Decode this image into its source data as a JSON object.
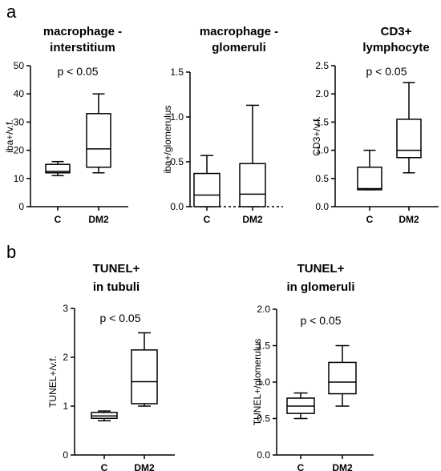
{
  "panel_labels": [
    "a",
    "b"
  ],
  "chart_data": [
    {
      "type": "box",
      "title": [
        "macrophage -",
        "interstitium"
      ],
      "ylabel": "iba+/v.f.",
      "ylim": [
        0,
        50
      ],
      "yticks": [
        "0",
        "10",
        "20",
        "30",
        "40",
        "50"
      ],
      "categories": [
        "C",
        "DM2"
      ],
      "annotation": "p < 0.05",
      "dashed_zero_line": false,
      "boxes": [
        {
          "category": "C",
          "min": 11,
          "q1": 12,
          "median": 12.5,
          "q3": 15,
          "max": 16
        },
        {
          "category": "DM2",
          "min": 12,
          "q1": 14,
          "median": 20.5,
          "q3": 33,
          "max": 40
        }
      ]
    },
    {
      "type": "box",
      "title": [
        "macrophage -",
        "glomeruli"
      ],
      "ylabel": "iba+/glomerulus",
      "ylim": [
        0,
        1.5
      ],
      "yticks": [
        "0.0",
        "0.5",
        "1.0",
        "1.5"
      ],
      "categories": [
        "C",
        "DM2"
      ],
      "annotation": "",
      "dashed_zero_line": true,
      "boxes": [
        {
          "category": "C",
          "min": 0,
          "q1": 0,
          "median": 0.13,
          "q3": 0.37,
          "max": 0.57
        },
        {
          "category": "DM2",
          "min": 0,
          "q1": 0,
          "median": 0.14,
          "q3": 0.48,
          "max": 1.13
        }
      ]
    },
    {
      "type": "box",
      "title": [
        "CD3+",
        "lymphocyte"
      ],
      "ylabel": "CD3+/v.f.",
      "ylim": [
        0,
        2.5
      ],
      "yticks": [
        "0.0",
        "0.5",
        "1.0",
        "1.5",
        "2.0",
        "2.5"
      ],
      "categories": [
        "C",
        "DM2"
      ],
      "annotation": "p < 0.05",
      "dashed_zero_line": false,
      "boxes": [
        {
          "category": "C",
          "min": 0.3,
          "q1": 0.3,
          "median": 0.32,
          "q3": 0.7,
          "max": 1.0
        },
        {
          "category": "DM2",
          "min": 0.6,
          "q1": 0.87,
          "median": 1.0,
          "q3": 1.55,
          "max": 2.2
        }
      ]
    },
    {
      "type": "box",
      "title": [
        "TUNEL+",
        "in tubuli"
      ],
      "ylabel": "TUNEL+/v.f.",
      "ylim": [
        0,
        3
      ],
      "yticks": [
        "0",
        "1",
        "2",
        "3"
      ],
      "categories": [
        "C",
        "DM2"
      ],
      "annotation": "p < 0.05",
      "dashed_zero_line": false,
      "boxes": [
        {
          "category": "C",
          "min": 0.7,
          "q1": 0.75,
          "median": 0.8,
          "q3": 0.87,
          "max": 0.9
        },
        {
          "category": "DM2",
          "min": 1.0,
          "q1": 1.05,
          "median": 1.5,
          "q3": 2.15,
          "max": 2.5
        }
      ]
    },
    {
      "type": "box",
      "title": [
        "TUNEL+",
        "in glomeruli"
      ],
      "ylabel": "TUNEL+/glomerulus",
      "ylim": [
        0,
        2.0
      ],
      "yticks": [
        "0.0",
        "0.5",
        "1.0",
        "1.5",
        "2.0"
      ],
      "categories": [
        "C",
        "DM2"
      ],
      "annotation": "p < 0.05",
      "dashed_zero_line": false,
      "boxes": [
        {
          "category": "C",
          "min": 0.5,
          "q1": 0.57,
          "median": 0.67,
          "q3": 0.78,
          "max": 0.85
        },
        {
          "category": "DM2",
          "min": 0.67,
          "q1": 0.84,
          "median": 1.0,
          "q3": 1.27,
          "max": 1.5
        }
      ]
    }
  ]
}
